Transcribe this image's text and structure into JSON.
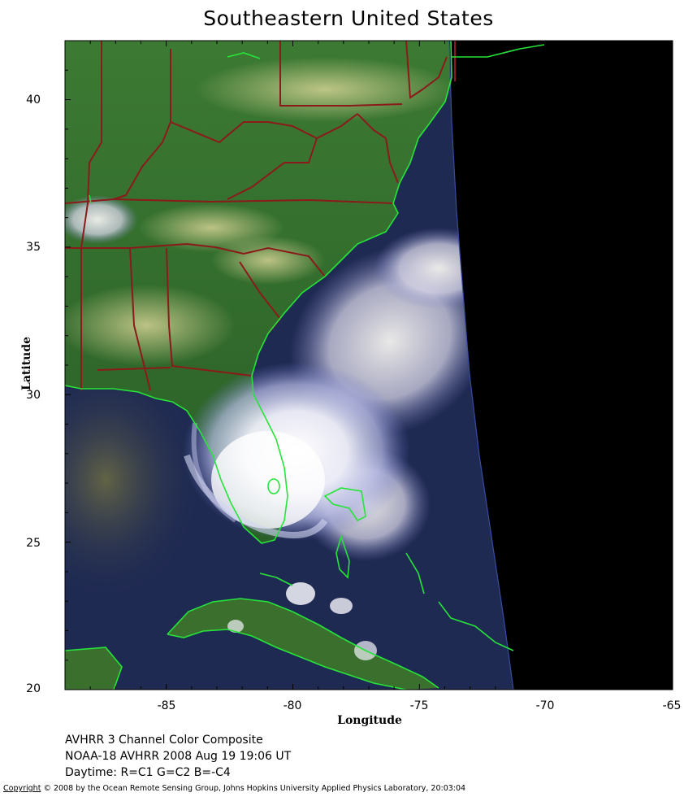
{
  "title": "Southeastern United States",
  "axes": {
    "xlabel": "Longitude",
    "ylabel": "Latitude",
    "x_ticks": [
      "-85",
      "-80",
      "-75",
      "-70",
      "-65"
    ],
    "y_ticks": [
      "40",
      "35",
      "30",
      "25",
      "20"
    ],
    "xlim": [
      -89,
      -65
    ],
    "ylim": [
      20,
      42
    ]
  },
  "info_lines": [
    "AVHRR 3 Channel Color Composite",
    "NOAA-18 AVHRR 2008 Aug 19 19:06 UT",
    "Daytime: R=C1 G=C2 B=-C4"
  ],
  "copyright": {
    "prefix": "Copyright",
    "rest": " © 2008 by the Ocean Remote Sensing Group, Johns Hopkins University Applied Physics Laboratory, 20:03:04"
  },
  "colors": {
    "land": "#2f6a2a",
    "ocean": "#1f2a52",
    "no_data": "#000000",
    "coastline": "#27e43a",
    "state_borders": "#8b1a1a",
    "clouds": "#e8e8f4"
  }
}
